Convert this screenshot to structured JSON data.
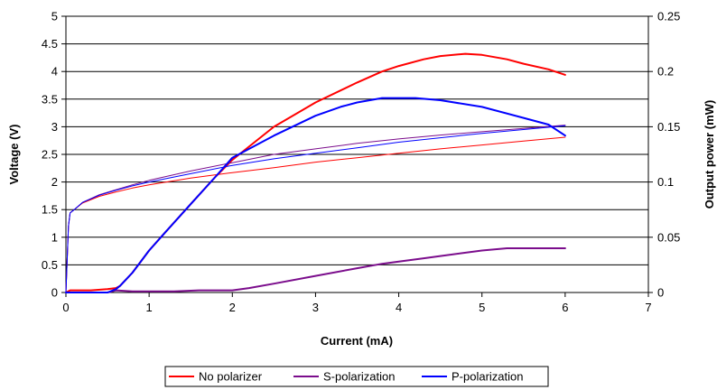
{
  "chart_data": {
    "type": "line",
    "xlabel": "Current (mA)",
    "ylabel": "Voltage (V)",
    "y2label": "Output power (mW)",
    "xlim": [
      0,
      7
    ],
    "ylim": [
      0,
      5
    ],
    "y2lim": [
      0,
      0.25
    ],
    "x_ticks": [
      "0",
      "1",
      "2",
      "3",
      "4",
      "5",
      "6",
      "7"
    ],
    "y_ticks": [
      "0",
      "0.5",
      "1",
      "1.5",
      "2",
      "2.5",
      "3",
      "3.5",
      "4",
      "4.5",
      "5"
    ],
    "y2_ticks": [
      "0",
      "0.05",
      "0.1",
      "0.15",
      "0.2",
      "0.25"
    ],
    "grid": "horizontal",
    "legend_position": "bottom",
    "series": [
      {
        "name": "No polarizer",
        "color": "#ff0000",
        "kind": "voltage",
        "axis": "left",
        "x": [
          0,
          0.03,
          0.05,
          0.1,
          0.2,
          0.4,
          0.6,
          0.8,
          1,
          1.5,
          2,
          2.5,
          3,
          3.5,
          4,
          4.5,
          5,
          5.5,
          6
        ],
        "y": [
          0,
          1.2,
          1.44,
          1.5,
          1.62,
          1.74,
          1.82,
          1.89,
          1.95,
          2.07,
          2.17,
          2.26,
          2.36,
          2.44,
          2.52,
          2.6,
          2.67,
          2.74,
          2.81
        ]
      },
      {
        "name": "No polarizer",
        "color": "#ff0000",
        "kind": "power",
        "axis": "right",
        "x": [
          0,
          0.05,
          0.1,
          0.3,
          0.5,
          0.6,
          0.65,
          0.7,
          0.8,
          1,
          1.2,
          1.5,
          1.8,
          2,
          2.5,
          3,
          3.5,
          3.8,
          4,
          4.3,
          4.5,
          4.8,
          5,
          5.3,
          5.5,
          5.8,
          6
        ],
        "y": [
          0,
          0.002,
          0.002,
          0.002,
          0.003,
          0.004,
          0.006,
          0.01,
          0.018,
          0.038,
          0.055,
          0.08,
          0.105,
          0.12,
          0.15,
          0.172,
          0.19,
          0.2,
          0.205,
          0.211,
          0.214,
          0.216,
          0.215,
          0.211,
          0.207,
          0.202,
          0.197
        ]
      },
      {
        "name": "S-polarization",
        "color": "#7b0d8c",
        "kind": "voltage",
        "axis": "left",
        "x": [
          0,
          0.03,
          0.05,
          0.1,
          0.2,
          0.4,
          0.6,
          0.8,
          1,
          1.5,
          2,
          2.5,
          3,
          3.5,
          4,
          4.5,
          5,
          5.5,
          6
        ],
        "y": [
          0,
          1.2,
          1.44,
          1.5,
          1.63,
          1.77,
          1.86,
          1.95,
          2.03,
          2.2,
          2.35,
          2.5,
          2.6,
          2.7,
          2.78,
          2.85,
          2.91,
          2.97,
          3.03
        ]
      },
      {
        "name": "S-polarization",
        "color": "#7b0d8c",
        "kind": "power",
        "axis": "right",
        "x": [
          0,
          0.5,
          0.6,
          0.8,
          1,
          1.3,
          1.6,
          2,
          2.2,
          2.5,
          3,
          3.5,
          3.8,
          4,
          4.3,
          4.5,
          5,
          5.3,
          5.5,
          6
        ],
        "y": [
          0,
          0,
          0.002,
          0.001,
          0.001,
          0.001,
          0.002,
          0.002,
          0.004,
          0.008,
          0.015,
          0.022,
          0.026,
          0.028,
          0.031,
          0.033,
          0.038,
          0.04,
          0.04,
          0.04
        ]
      },
      {
        "name": "P-polarization",
        "color": "#0000ff",
        "kind": "voltage",
        "axis": "left",
        "x": [
          0,
          0.03,
          0.05,
          0.1,
          0.2,
          0.4,
          0.6,
          0.8,
          1,
          1.5,
          2,
          2.5,
          3,
          3.5,
          4,
          4.5,
          5,
          5.5,
          6
        ],
        "y": [
          0,
          1.2,
          1.44,
          1.5,
          1.63,
          1.76,
          1.85,
          1.93,
          2,
          2.15,
          2.3,
          2.42,
          2.52,
          2.62,
          2.72,
          2.8,
          2.88,
          2.95,
          3.02
        ]
      },
      {
        "name": "P-polarization",
        "color": "#0000ff",
        "kind": "power",
        "axis": "right",
        "x": [
          0,
          0.3,
          0.5,
          0.6,
          0.65,
          0.7,
          0.8,
          1,
          1.2,
          1.5,
          1.8,
          2,
          2.5,
          3,
          3.3,
          3.5,
          3.8,
          4,
          4.2,
          4.5,
          5,
          5.5,
          5.8,
          6
        ],
        "y": [
          0,
          0,
          0,
          0.003,
          0.006,
          0.01,
          0.018,
          0.038,
          0.055,
          0.08,
          0.105,
          0.122,
          0.142,
          0.16,
          0.168,
          0.172,
          0.176,
          0.176,
          0.176,
          0.174,
          0.168,
          0.158,
          0.152,
          0.142
        ]
      }
    ],
    "legend": [
      {
        "name": "No polarizer",
        "color": "#ff0000"
      },
      {
        "name": "S-polarization",
        "color": "#7b0d8c"
      },
      {
        "name": "P-polarization",
        "color": "#0000ff"
      }
    ]
  }
}
